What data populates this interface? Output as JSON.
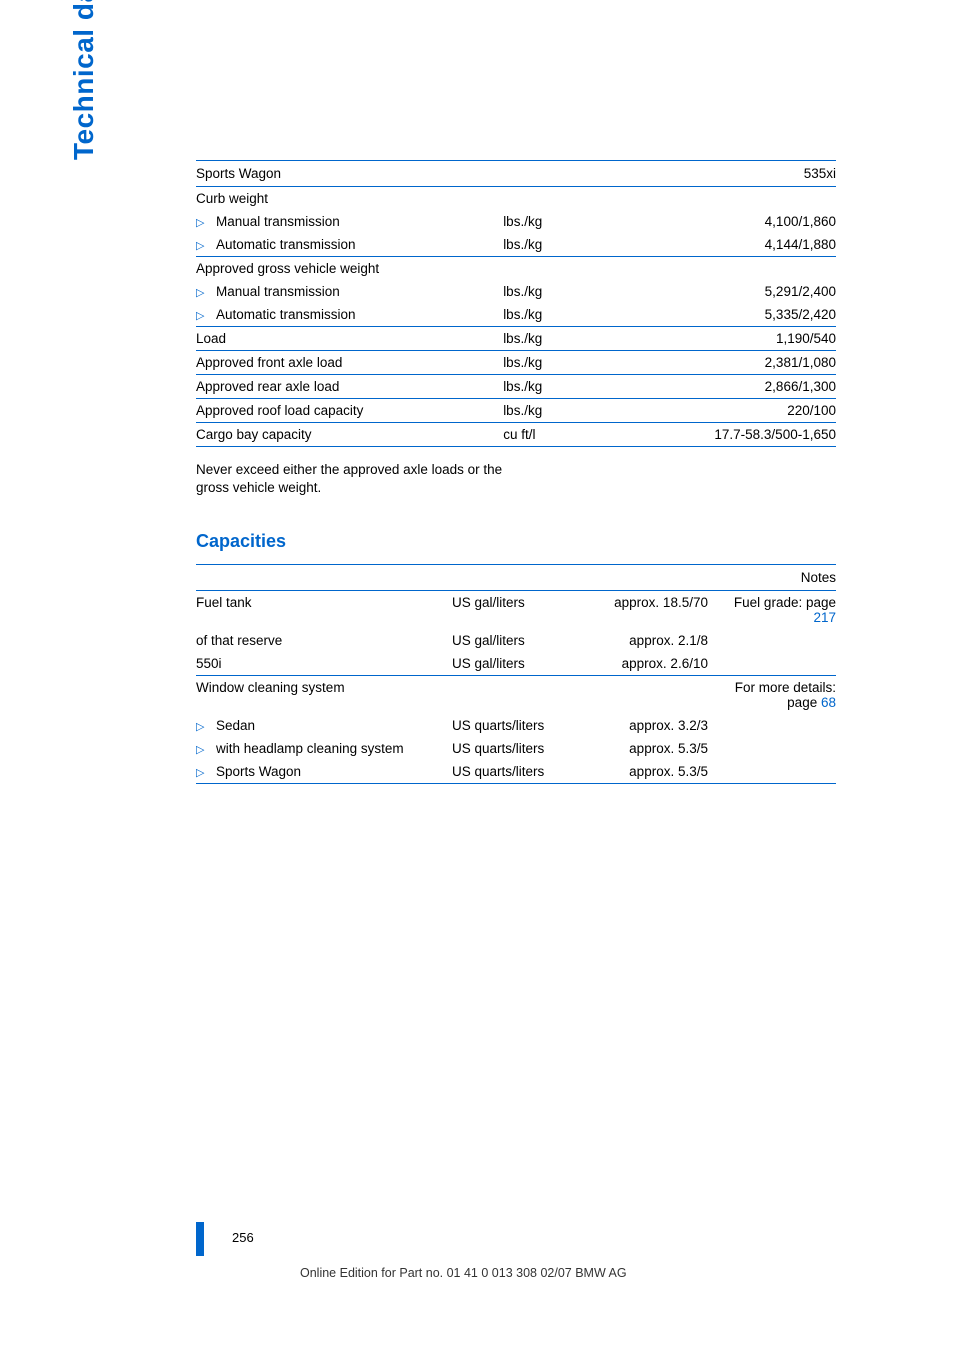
{
  "sideLabel": "Technical data",
  "weightsTable": {
    "headerLeft": "Sports Wagon",
    "headerRight": "535xi",
    "rows": [
      {
        "type": "plain",
        "label": "Curb weight",
        "unit": "",
        "value": "",
        "sepTop": true
      },
      {
        "type": "bullet",
        "label": "Manual transmission",
        "unit": "lbs./kg",
        "value": "4,100/1,860"
      },
      {
        "type": "bullet",
        "label": "Automatic transmission",
        "unit": "lbs./kg",
        "value": "4,144/1,880"
      },
      {
        "type": "plain",
        "label": "Approved gross vehicle weight",
        "unit": "",
        "value": "",
        "sepTop": true
      },
      {
        "type": "bullet",
        "label": "Manual transmission",
        "unit": "lbs./kg",
        "value": "5,291/2,400"
      },
      {
        "type": "bullet",
        "label": "Automatic transmission",
        "unit": "lbs./kg",
        "value": "5,335/2,420"
      },
      {
        "type": "plain",
        "label": "Load",
        "unit": "lbs./kg",
        "value": "1,190/540",
        "sepTop": true
      },
      {
        "type": "plain",
        "label": "Approved front axle load",
        "unit": "lbs./kg",
        "value": "2,381/1,080",
        "sepTop": true
      },
      {
        "type": "plain",
        "label": "Approved rear axle load",
        "unit": "lbs./kg",
        "value": "2,866/1,300",
        "sepTop": true
      },
      {
        "type": "plain",
        "label": "Approved roof load capacity",
        "unit": "lbs./kg",
        "value": "220/100",
        "sepTop": true
      },
      {
        "type": "plain",
        "label": "Cargo bay capacity",
        "unit": "cu ft/l",
        "value": "17.7-58.3/500-1,650",
        "sepTop": true,
        "sepBot": true
      }
    ]
  },
  "noteText": "Never exceed either the approved axle loads or the gross vehicle weight.",
  "capacitiesTitle": "Capacities",
  "capTable": {
    "notesHeader": "Notes",
    "rows": [
      {
        "type": "plain",
        "label": "Fuel tank",
        "unit": "US gal/liters",
        "amount": "approx. 18.5/70",
        "note": "Fuel grade: page ",
        "noteLink": "217"
      },
      {
        "type": "plain",
        "label": "of that reserve",
        "unit": "US gal/liters",
        "amount": "approx. 2.1/8",
        "note": "",
        "noteLink": ""
      },
      {
        "type": "plain",
        "label": "550i",
        "unit": "US gal/liters",
        "amount": "approx. 2.6/10",
        "note": "",
        "noteLink": ""
      },
      {
        "type": "plain",
        "label": "Window cleaning system",
        "unit": "",
        "amount": "",
        "note": "For more details: page ",
        "noteLink": "68",
        "sepTop": true
      },
      {
        "type": "bullet",
        "label": "Sedan",
        "unit": "US quarts/liters",
        "amount": "approx. 3.2/3",
        "note": "",
        "noteLink": ""
      },
      {
        "type": "bullet",
        "label": "with headlamp cleaning system",
        "unit": "US quarts/liters",
        "amount": "approx. 5.3/5",
        "note": "",
        "noteLink": ""
      },
      {
        "type": "bullet",
        "label": "Sports Wagon",
        "unit": "US quarts/liters",
        "amount": "approx. 5.3/5",
        "note": "",
        "noteLink": "",
        "sepBot": true
      }
    ]
  },
  "pageNumber": "256",
  "footerText": "Online Edition for Part no. 01 41 0 013 308 02/07 BMW AG"
}
